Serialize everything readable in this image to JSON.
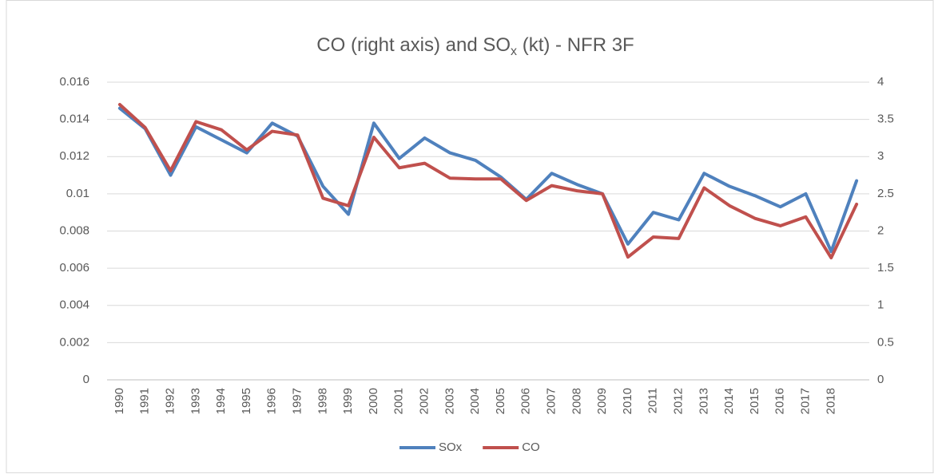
{
  "chart_data": {
    "type": "line",
    "title": [
      "CO (right axis) and SO",
      "x",
      " (kt) - NFR 3F"
    ],
    "categories": [
      "1990",
      "1991",
      "1992",
      "1993",
      "1994",
      "1995",
      "1996",
      "1997",
      "1998",
      "1999",
      "2000",
      "2001",
      "2002",
      "2003",
      "2004",
      "2005",
      "2006",
      "2007",
      "2008",
      "2009",
      "2010",
      "2011",
      "2012",
      "2013",
      "2014",
      "2015",
      "2016",
      "2017",
      "2018",
      null
    ],
    "series": [
      {
        "name": "SOx",
        "color": "#4f81bd",
        "axis": "y",
        "values": [
          0.0146,
          0.0135,
          0.011,
          0.0136,
          0.0129,
          0.0122,
          0.0138,
          0.0131,
          0.0104,
          0.0089,
          0.0138,
          0.0119,
          0.013,
          0.0122,
          0.0118,
          0.0109,
          0.0097,
          0.0111,
          0.0105,
          0.01,
          0.0073,
          0.009,
          0.0086,
          0.0111,
          0.0104,
          0.0099,
          0.0093,
          0.01,
          0.0069,
          0.0107
        ]
      },
      {
        "name": "CO",
        "color": "#c0504d",
        "axis": "y2",
        "values": [
          3.7,
          3.39,
          2.81,
          3.47,
          3.36,
          3.09,
          3.34,
          3.29,
          2.44,
          2.34,
          3.26,
          2.85,
          2.91,
          2.71,
          2.7,
          2.7,
          2.41,
          2.61,
          2.54,
          2.5,
          1.65,
          1.92,
          1.9,
          2.58,
          2.34,
          2.17,
          2.07,
          2.19,
          1.64,
          2.36
        ]
      }
    ],
    "ylim": [
      0,
      0.016
    ],
    "yticks": [
      0,
      0.002,
      0.004,
      0.006,
      0.008,
      0.01,
      0.012,
      0.014,
      0.016
    ],
    "y2lim": [
      0,
      4
    ],
    "y2ticks": [
      0,
      0.5,
      1,
      1.5,
      2,
      2.5,
      3,
      3.5,
      4
    ],
    "grid": true,
    "legend": "bottom"
  }
}
